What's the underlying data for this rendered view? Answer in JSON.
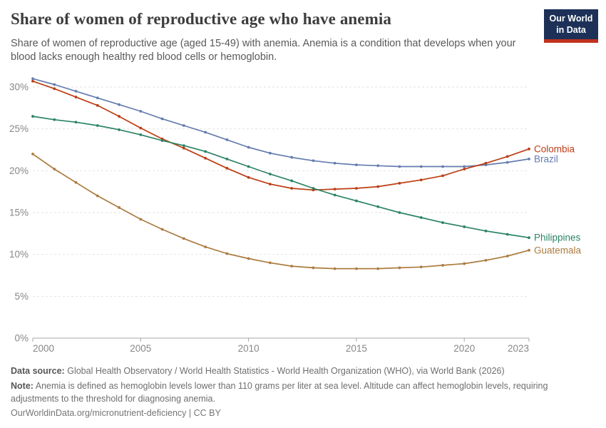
{
  "header": {
    "title": "Share of women of reproductive age who have anemia",
    "subtitle": "Share of women of reproductive age (aged 15-49) with anemia. Anemia is a condition that develops when your blood lacks enough healthy red blood cells or hemoglobin.",
    "logo": {
      "line1": "Our World",
      "line2": "in Data",
      "bg_color": "#1d3158",
      "stripe_color": "#c0321d"
    }
  },
  "chart_data": {
    "type": "line",
    "x_label": "",
    "y_label": "",
    "x": [
      2000,
      2001,
      2002,
      2003,
      2004,
      2005,
      2006,
      2007,
      2008,
      2009,
      2010,
      2011,
      2012,
      2013,
      2014,
      2015,
      2016,
      2017,
      2018,
      2019,
      2020,
      2021,
      2022,
      2023
    ],
    "series": [
      {
        "name": "Brazil",
        "color": "#647daf",
        "values": [
          31.0,
          30.3,
          29.5,
          28.7,
          27.9,
          27.1,
          26.2,
          25.4,
          24.6,
          23.7,
          22.8,
          22.1,
          21.6,
          21.2,
          20.9,
          20.7,
          20.6,
          20.5,
          20.5,
          20.5,
          20.5,
          20.7,
          21.0,
          21.4
        ]
      },
      {
        "name": "Colombia",
        "color": "#bc3e14",
        "values": [
          30.7,
          29.8,
          28.8,
          27.8,
          26.5,
          25.1,
          23.8,
          22.7,
          21.5,
          20.3,
          19.2,
          18.4,
          17.9,
          17.7,
          17.8,
          17.9,
          18.1,
          18.5,
          18.9,
          19.4,
          20.2,
          20.9,
          21.7,
          22.6
        ]
      },
      {
        "name": "Philippines",
        "color": "#2c8465",
        "values": [
          26.5,
          26.1,
          25.8,
          25.4,
          24.9,
          24.3,
          23.6,
          23.0,
          22.3,
          21.4,
          20.5,
          19.6,
          18.8,
          17.9,
          17.1,
          16.4,
          15.7,
          15.0,
          14.4,
          13.8,
          13.3,
          12.8,
          12.4,
          12.0
        ]
      },
      {
        "name": "Guatemala",
        "color": "#ac7c40",
        "values": [
          22.0,
          20.2,
          18.6,
          17.0,
          15.6,
          14.2,
          13.0,
          11.9,
          10.9,
          10.1,
          9.5,
          9.0,
          8.6,
          8.4,
          8.3,
          8.3,
          8.3,
          8.4,
          8.5,
          8.7,
          8.9,
          9.3,
          9.8,
          10.5
        ]
      }
    ],
    "ylim": [
      0,
      31.5
    ],
    "yticks": [
      0,
      5,
      10,
      15,
      20,
      25,
      30
    ],
    "ytick_labels": [
      "0%",
      "5%",
      "10%",
      "15%",
      "20%",
      "25%",
      "30%"
    ],
    "xticks": [
      2000,
      2005,
      2010,
      2015,
      2020,
      2023
    ],
    "xtick_labels": [
      "2000",
      "2005",
      "2010",
      "2015",
      "2020",
      "2023"
    ],
    "grid": "horizontal-dashed",
    "legend": "end-of-line-labels",
    "colors": {
      "grid": "#e2e2e2",
      "axis": "#a7a7a7",
      "tick_text": "#878787"
    }
  },
  "footer": {
    "source_label": "Data source:",
    "source_text": "Global Health Observatory / World Health Statistics - World Health Organization (WHO), via World Bank (2026)",
    "note_label": "Note:",
    "note_text": "Anemia is defined as hemoglobin levels lower than 110 grams per liter at sea level. Altitude can affect hemoglobin levels, requiring adjustments to the threshold for diagnosing anemia.",
    "citation": "OurWorldinData.org/micronutrient-deficiency | CC BY"
  }
}
